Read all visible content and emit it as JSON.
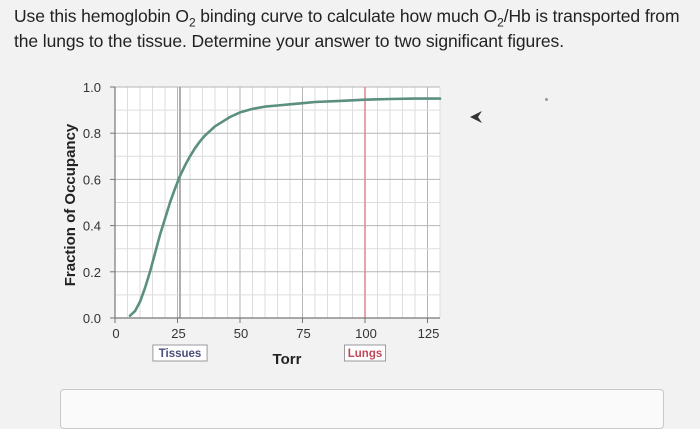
{
  "question": {
    "part1": "Use this hemoglobin O",
    "sub1": "2",
    "part2": " binding curve to calculate how much O",
    "sub2": "2",
    "part3": "/Hb is transported from the lungs to the tissue. Determine your answer to two significant figures."
  },
  "chart_data": {
    "type": "line",
    "title": "",
    "xlabel": "Torr",
    "ylabel": "Fraction of Occupancy",
    "xlim": [
      0,
      130
    ],
    "ylim": [
      0,
      1.0
    ],
    "x_ticks": [
      "0",
      "25",
      "50",
      "75",
      "100",
      "125"
    ],
    "x_tick_values": [
      0,
      25,
      50,
      75,
      100,
      125
    ],
    "y_ticks": [
      "0.0",
      "0.2",
      "0.4",
      "0.6",
      "0.8",
      "1.0"
    ],
    "y_tick_values": [
      0,
      0.2,
      0.4,
      0.6,
      0.8,
      1.0
    ],
    "grid": true,
    "series": [
      {
        "color": "#5b8f80",
        "x": [
          6,
          8,
          10,
          12,
          14,
          16,
          18,
          20,
          22,
          24,
          26,
          28,
          30,
          32,
          34,
          36,
          38,
          40,
          43,
          46,
          50,
          55,
          60,
          65,
          70,
          75,
          80,
          90,
          100,
          110,
          120,
          130
        ],
        "y": [
          0.01,
          0.03,
          0.07,
          0.13,
          0.2,
          0.28,
          0.36,
          0.43,
          0.5,
          0.56,
          0.615,
          0.66,
          0.7,
          0.735,
          0.765,
          0.79,
          0.81,
          0.83,
          0.85,
          0.87,
          0.89,
          0.905,
          0.915,
          0.92,
          0.925,
          0.93,
          0.935,
          0.94,
          0.945,
          0.948,
          0.95,
          0.95
        ]
      }
    ],
    "reference_lines": [
      {
        "x": 26,
        "color": "#9a9aa0",
        "label": "Tissues"
      },
      {
        "x": 100,
        "color": "#e28a94",
        "label": "Lungs"
      }
    ]
  }
}
